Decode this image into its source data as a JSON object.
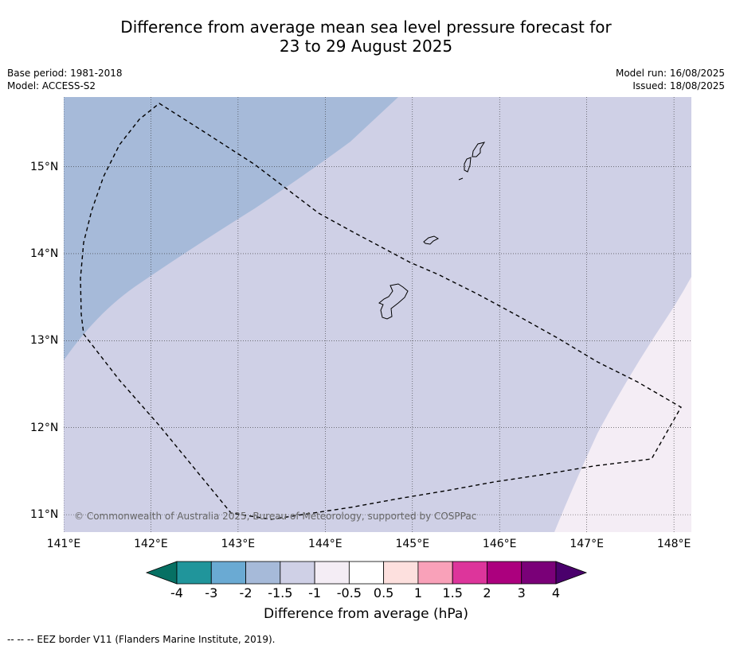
{
  "title_line1": "Difference from average mean sea level pressure forecast for",
  "title_line2": "23 to 29 August 2025",
  "meta": {
    "base_period": "Base period: 1981-2018",
    "model": "Model: ACCESS-S2",
    "model_run": "Model run: 16/08/2025",
    "issued": "Issued: 18/08/2025"
  },
  "map": {
    "lon_range": [
      141.0,
      148.2
    ],
    "lat_range": [
      10.8,
      15.8
    ],
    "lon_ticks": [
      "141°E",
      "142°E",
      "143°E",
      "144°E",
      "145°E",
      "146°E",
      "147°E",
      "148°E"
    ],
    "lat_ticks": [
      "15°N",
      "14°N",
      "13°N",
      "12°N",
      "11°N"
    ],
    "copyright": "© Commonwealth of Australia 2025, Bureau of Meteorology, supported by COSPPac",
    "region_colors": {
      "lt_minus_1_5": "#a6bad9",
      "minus_1_5_to_minus_1": "#cfd0e6",
      "minus_1_to_minus_0_5": "#f4edf5"
    }
  },
  "colorbar": {
    "title": "Difference from average (hPa)",
    "ticks": [
      "-4",
      "-3",
      "-2",
      "-1.5",
      "-1",
      "-0.5",
      "0.5",
      "1",
      "1.5",
      "2",
      "3",
      "4"
    ],
    "colors": [
      "#067063",
      "#20959b",
      "#6aaad3",
      "#a6bad9",
      "#cfd0e6",
      "#f4edf5",
      "#ffffff",
      "#fde0de",
      "#f9a1b9",
      "#dd359b",
      "#ac007e",
      "#7a0078",
      "#4a006c"
    ]
  },
  "footnote": "--  --  -- EEZ border V11 (Flanders Marine Institute, 2019)."
}
